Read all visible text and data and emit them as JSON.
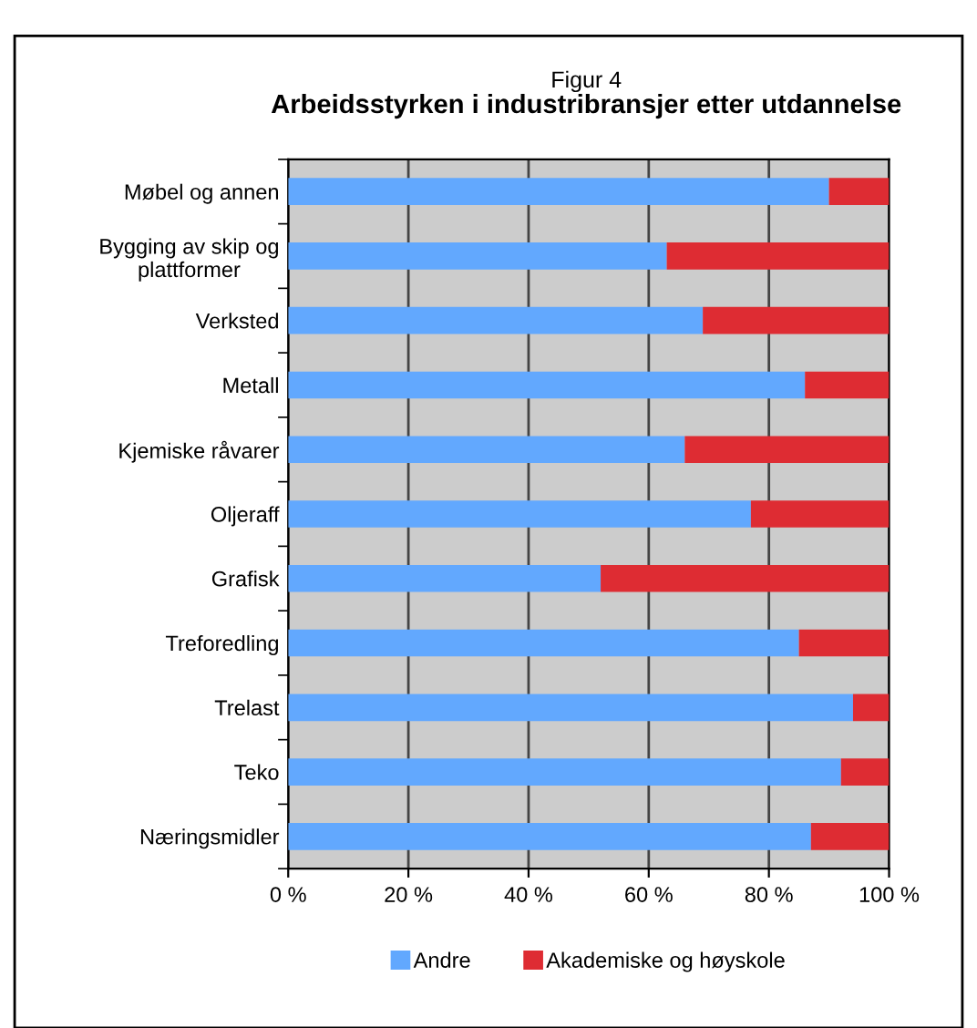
{
  "chart_data": {
    "type": "bar",
    "orientation": "horizontal",
    "stacked": true,
    "title": "Arbeidsstyrken i industribransjer etter utdannelse",
    "subtitle": "Figur 4",
    "categories": [
      "Møbel og annen",
      "Bygging av skip og\nplattformer",
      "Verksted",
      "Metall",
      "Kjemiske råvarer",
      "Oljeraff",
      "Grafisk",
      "Treforedling",
      "Trelast",
      "Teko",
      "Næringsmidler"
    ],
    "series": [
      {
        "name": "Andre",
        "color": "#62a8fe",
        "values": [
          90,
          63,
          69,
          86,
          66,
          77,
          52,
          85,
          94,
          92,
          87
        ]
      },
      {
        "name": "Akademiske og høyskole",
        "color": "#de2c33",
        "values": [
          10,
          37,
          31,
          14,
          34,
          23,
          48,
          15,
          6,
          8,
          13
        ]
      }
    ],
    "xlim": [
      0,
      100
    ],
    "xticks": [
      {
        "value": 0,
        "label": "0 %"
      },
      {
        "value": 20,
        "label": "20 %"
      },
      {
        "value": 40,
        "label": "40 %"
      },
      {
        "value": 60,
        "label": "60 %"
      },
      {
        "value": 80,
        "label": "80 %"
      },
      {
        "value": 100,
        "label": "100 %"
      }
    ],
    "grid": "x",
    "legend": "bottom"
  }
}
